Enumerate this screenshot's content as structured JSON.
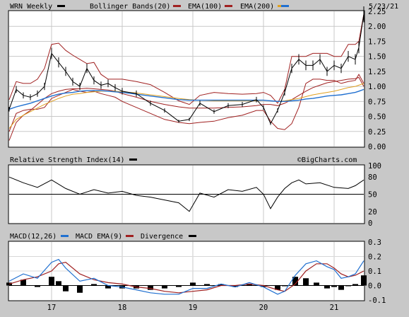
{
  "chart_data": [
    {
      "type": "line",
      "panel": "price",
      "ticker_label": "WRN Weekly",
      "date_label": "5/23/21",
      "legend": [
        {
          "name": "Bollinger Bands(20)",
          "color": "#a02020"
        },
        {
          "name": "EMA(100)",
          "color": "#a02020"
        },
        {
          "name": "EMA(200)",
          "color": "#e0a020"
        },
        {
          "name": "",
          "color": "#2070d0"
        }
      ],
      "x_tick_labels": [
        "17",
        "18",
        "19",
        "20",
        "21"
      ],
      "x_tick_years": [
        2017,
        2018,
        2019,
        2020,
        2021
      ],
      "x_range": [
        2016.4,
        2021.42
      ],
      "ylim": [
        0,
        2.25
      ],
      "y_ticks": [
        "2.25",
        "2.00",
        "1.75",
        "1.50",
        "1.25",
        "1.00",
        "0.75",
        "0.50",
        "0.25",
        "0.00"
      ],
      "grid": true,
      "x": [
        2016.4,
        2016.5,
        2016.6,
        2016.7,
        2016.8,
        2016.9,
        2017.0,
        2017.1,
        2017.2,
        2017.3,
        2017.4,
        2017.5,
        2017.6,
        2017.7,
        2017.8,
        2017.9,
        2018.0,
        2018.2,
        2018.4,
        2018.6,
        2018.8,
        2018.95,
        2019.1,
        2019.3,
        2019.5,
        2019.7,
        2019.9,
        2020.0,
        2020.1,
        2020.2,
        2020.3,
        2020.4,
        2020.5,
        2020.6,
        2020.7,
        2020.8,
        2020.9,
        2021.0,
        2021.1,
        2021.2,
        2021.3,
        2021.35,
        2021.42
      ],
      "price": [
        0.62,
        0.95,
        0.85,
        0.82,
        0.88,
        1.0,
        1.55,
        1.4,
        1.25,
        1.08,
        1.0,
        1.3,
        1.1,
        1.02,
        1.05,
        0.98,
        0.92,
        0.88,
        0.72,
        0.6,
        0.42,
        0.45,
        0.72,
        0.58,
        0.68,
        0.7,
        0.78,
        0.65,
        0.38,
        0.6,
        0.9,
        1.3,
        1.45,
        1.35,
        1.35,
        1.45,
        1.25,
        1.35,
        1.3,
        1.5,
        1.45,
        1.65,
        2.2
      ],
      "bb_upper": [
        0.78,
        1.08,
        1.05,
        1.05,
        1.12,
        1.3,
        1.7,
        1.72,
        1.6,
        1.52,
        1.45,
        1.38,
        1.4,
        1.2,
        1.12,
        1.12,
        1.12,
        1.08,
        1.03,
        0.9,
        0.76,
        0.7,
        0.85,
        0.9,
        0.88,
        0.87,
        0.88,
        0.9,
        0.85,
        0.72,
        0.95,
        1.5,
        1.5,
        1.5,
        1.55,
        1.55,
        1.55,
        1.5,
        1.5,
        1.7,
        1.7,
        1.75,
        2.2
      ],
      "bb_lower": [
        0.25,
        0.55,
        0.6,
        0.62,
        0.62,
        0.65,
        0.8,
        0.85,
        0.9,
        0.95,
        0.92,
        0.9,
        0.92,
        0.88,
        0.85,
        0.82,
        0.75,
        0.65,
        0.55,
        0.45,
        0.4,
        0.38,
        0.4,
        0.42,
        0.48,
        0.52,
        0.6,
        0.6,
        0.42,
        0.3,
        0.28,
        0.38,
        0.65,
        1.05,
        1.12,
        1.12,
        1.1,
        1.1,
        1.05,
        1.08,
        1.1,
        1.2,
        1.05
      ],
      "ema100": [
        0.1,
        0.4,
        0.52,
        0.6,
        0.7,
        0.8,
        0.88,
        0.92,
        0.95,
        0.96,
        0.96,
        0.97,
        0.96,
        0.95,
        0.94,
        0.92,
        0.88,
        0.82,
        0.75,
        0.7,
        0.66,
        0.64,
        0.64,
        0.64,
        0.65,
        0.66,
        0.68,
        0.7,
        0.7,
        0.68,
        0.72,
        0.78,
        0.85,
        0.92,
        0.98,
        1.02,
        1.06,
        1.08,
        1.1,
        1.12,
        1.13,
        1.15,
        1.0
      ],
      "ema200": [
        0.3,
        0.45,
        0.52,
        0.58,
        0.64,
        0.7,
        0.75,
        0.8,
        0.84,
        0.87,
        0.88,
        0.9,
        0.91,
        0.92,
        0.92,
        0.92,
        0.91,
        0.89,
        0.86,
        0.83,
        0.8,
        0.78,
        0.77,
        0.76,
        0.76,
        0.76,
        0.76,
        0.77,
        0.76,
        0.75,
        0.76,
        0.78,
        0.8,
        0.83,
        0.86,
        0.88,
        0.9,
        0.92,
        0.95,
        0.98,
        1.0,
        1.02,
        1.05
      ],
      "blue_line": [
        0.62,
        0.66,
        0.69,
        0.72,
        0.76,
        0.8,
        0.84,
        0.87,
        0.89,
        0.9,
        0.92,
        0.93,
        0.93,
        0.93,
        0.92,
        0.91,
        0.9,
        0.87,
        0.84,
        0.81,
        0.78,
        0.77,
        0.77,
        0.77,
        0.77,
        0.77,
        0.77,
        0.77,
        0.76,
        0.75,
        0.75,
        0.76,
        0.77,
        0.79,
        0.8,
        0.82,
        0.84,
        0.85,
        0.86,
        0.88,
        0.9,
        0.92,
        0.95
      ]
    },
    {
      "type": "line",
      "panel": "rsi",
      "title": "Relative Strength Index(14)",
      "watermark": "©BigCharts.com",
      "ylim": [
        0,
        100
      ],
      "y_ticks": [
        "100",
        "80",
        "50",
        "20",
        "0"
      ],
      "reference_level": 50,
      "x": [
        2016.4,
        2016.6,
        2016.8,
        2017.0,
        2017.2,
        2017.4,
        2017.6,
        2017.8,
        2018.0,
        2018.2,
        2018.4,
        2018.6,
        2018.8,
        2018.95,
        2019.1,
        2019.3,
        2019.5,
        2019.7,
        2019.9,
        2020.0,
        2020.1,
        2020.2,
        2020.3,
        2020.4,
        2020.5,
        2020.6,
        2020.8,
        2021.0,
        2021.2,
        2021.3,
        2021.42
      ],
      "values": [
        80,
        70,
        62,
        75,
        60,
        50,
        58,
        52,
        55,
        48,
        45,
        40,
        35,
        20,
        52,
        45,
        58,
        55,
        62,
        50,
        25,
        45,
        60,
        70,
        75,
        68,
        70,
        62,
        60,
        65,
        75
      ]
    },
    {
      "type": "line",
      "panel": "macd",
      "title_parts": [
        "MACD(12,26)",
        "MACD EMA(9)",
        "Divergence"
      ],
      "series_colors": [
        "#2070d0",
        "#a02020",
        "#000000"
      ],
      "ylim": [
        -0.1,
        0.3
      ],
      "y_ticks": [
        "0.3",
        "0.2",
        "0.1",
        "0.0",
        "-0.1"
      ],
      "x": [
        2016.4,
        2016.6,
        2016.8,
        2017.0,
        2017.1,
        2017.2,
        2017.4,
        2017.6,
        2017.8,
        2018.0,
        2018.2,
        2018.4,
        2018.6,
        2018.8,
        2019.0,
        2019.2,
        2019.4,
        2019.6,
        2019.8,
        2020.0,
        2020.2,
        2020.3,
        2020.45,
        2020.6,
        2020.75,
        2020.9,
        2021.0,
        2021.1,
        2021.2,
        2021.3,
        2021.42
      ],
      "macd": [
        0.03,
        0.08,
        0.05,
        0.16,
        0.18,
        0.12,
        0.03,
        0.05,
        0.0,
        -0.01,
        -0.03,
        -0.05,
        -0.06,
        -0.06,
        -0.02,
        -0.02,
        0.01,
        -0.01,
        0.02,
        -0.01,
        -0.06,
        -0.04,
        0.07,
        0.15,
        0.17,
        0.13,
        0.11,
        0.05,
        0.06,
        0.08,
        0.17
      ],
      "signal": [
        0.01,
        0.04,
        0.06,
        0.1,
        0.15,
        0.16,
        0.08,
        0.04,
        0.02,
        0.01,
        -0.01,
        -0.02,
        -0.04,
        -0.05,
        -0.04,
        -0.03,
        0.0,
        0.0,
        0.01,
        0.0,
        -0.03,
        -0.04,
        0.01,
        0.1,
        0.15,
        0.15,
        0.12,
        0.08,
        0.06,
        0.07,
        0.1
      ]
    }
  ]
}
